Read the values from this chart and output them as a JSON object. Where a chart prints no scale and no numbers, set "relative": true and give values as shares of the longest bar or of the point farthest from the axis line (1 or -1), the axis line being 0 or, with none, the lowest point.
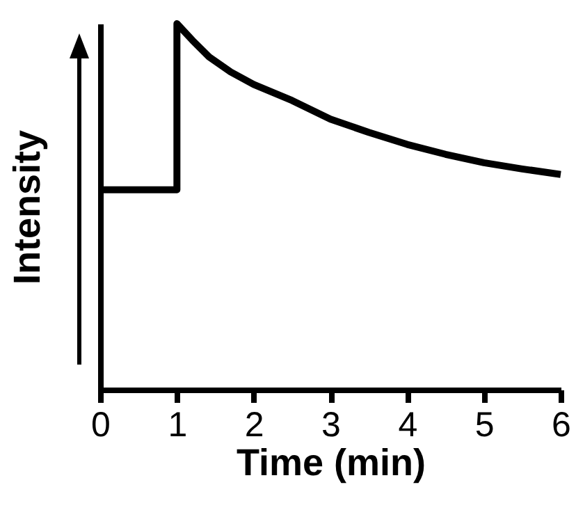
{
  "chart_data": {
    "type": "line",
    "xlabel": "Time (min)",
    "ylabel": "Intensity",
    "relative": true,
    "x": [
      0,
      1,
      1,
      1.2,
      1.42,
      1.7,
      2,
      2.5,
      3,
      3.5,
      4,
      4.5,
      5,
      5.5,
      6
    ],
    "series": [
      {
        "color": "#000000",
        "values": [
          0.546,
          0.546,
          1,
          0.955,
          0.909,
          0.868,
          0.834,
          0.79,
          0.739,
          0.703,
          0.67,
          0.643,
          0.62,
          0.603,
          0.588
        ]
      }
    ],
    "xlim": [
      0,
      6
    ],
    "xticks": [
      0,
      1,
      2,
      3,
      4,
      5,
      6
    ]
  }
}
